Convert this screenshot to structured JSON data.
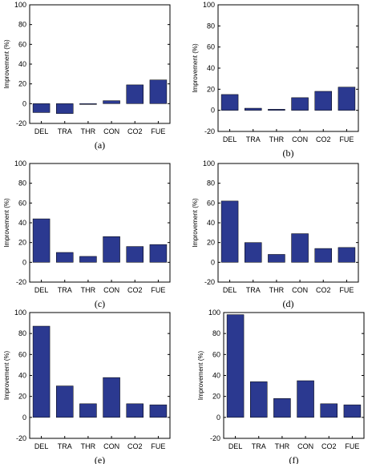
{
  "chart_data": [
    {
      "type": "bar",
      "panel_label": "(a)",
      "ylabel": "Improvement (%)",
      "ylim": [
        -20,
        100
      ],
      "yticks": [
        -20,
        0,
        20,
        40,
        60,
        80,
        100
      ],
      "grid": false,
      "categories": [
        "DEL",
        "TRA",
        "THR",
        "CON",
        "CO2",
        "FUE"
      ],
      "values": [
        -9,
        -10,
        -0.5,
        3,
        19,
        24
      ],
      "bar_color": "#2b3990"
    },
    {
      "type": "bar",
      "panel_label": "(b)",
      "ylabel": "Improvement (%)",
      "ylim": [
        -20,
        100
      ],
      "yticks": [
        -20,
        0,
        20,
        40,
        60,
        80,
        100
      ],
      "grid": false,
      "categories": [
        "DEL",
        "TRA",
        "THR",
        "CON",
        "CO2",
        "FUE"
      ],
      "values": [
        15,
        2,
        1,
        12,
        18,
        22
      ],
      "bar_color": "#2b3990"
    },
    {
      "type": "bar",
      "panel_label": "(c)",
      "ylabel": "Improvement (%)",
      "ylim": [
        -20,
        100
      ],
      "yticks": [
        -20,
        0,
        20,
        40,
        60,
        80,
        100
      ],
      "grid": false,
      "categories": [
        "DEL",
        "TRA",
        "THR",
        "CON",
        "CO2",
        "FUE"
      ],
      "values": [
        44,
        10,
        6,
        26,
        16,
        18
      ],
      "bar_color": "#2b3990"
    },
    {
      "type": "bar",
      "panel_label": "(d)",
      "ylabel": "Improvement (%)",
      "ylim": [
        -20,
        100
      ],
      "yticks": [
        -20,
        0,
        20,
        40,
        60,
        80,
        100
      ],
      "grid": false,
      "categories": [
        "DEL",
        "TRA",
        "THR",
        "CON",
        "CO2",
        "FUE"
      ],
      "values": [
        62,
        20,
        8,
        29,
        14,
        15
      ],
      "bar_color": "#2b3990"
    },
    {
      "type": "bar",
      "panel_label": "(e)",
      "ylabel": "Improvement (%)",
      "ylim": [
        -20,
        100
      ],
      "yticks": [
        -20,
        0,
        20,
        40,
        60,
        80,
        100
      ],
      "grid": false,
      "categories": [
        "DEL",
        "TRA",
        "THR",
        "CON",
        "CO2",
        "FUE"
      ],
      "values": [
        87,
        30,
        13,
        38,
        13,
        12
      ],
      "bar_color": "#2b3990"
    },
    {
      "type": "bar",
      "panel_label": "(f)",
      "ylabel": "Improvement (%)",
      "ylim": [
        -20,
        100
      ],
      "yticks": [
        -20,
        0,
        20,
        40,
        60,
        80,
        100
      ],
      "grid": false,
      "categories": [
        "DEL",
        "TRA",
        "THR",
        "CON",
        "CO2",
        "FUE"
      ],
      "values": [
        98,
        34,
        18,
        35,
        13,
        12
      ],
      "bar_color": "#2b3990"
    }
  ]
}
